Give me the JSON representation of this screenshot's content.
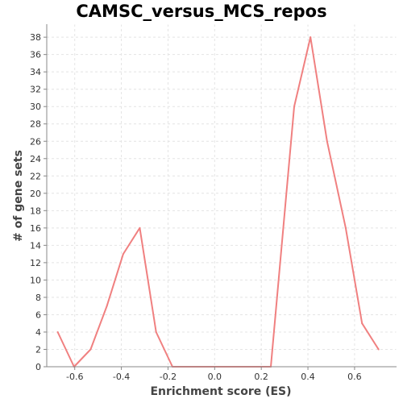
{
  "chart_data": {
    "type": "line",
    "title": "CAMSC_versus_MCS_repos",
    "xlabel": "Enrichment score (ES)",
    "ylabel": "# of gene sets",
    "xlim": [
      -0.72,
      0.78
    ],
    "ylim": [
      0,
      39.5
    ],
    "xticks": [
      "-0.6",
      "-0.4",
      "-0.2",
      "0.0",
      "0.2",
      "0.4",
      "0.6"
    ],
    "xtick_values": [
      -0.6,
      -0.4,
      -0.2,
      0.0,
      0.2,
      0.4,
      0.6
    ],
    "yticks": [
      "0",
      "2",
      "4",
      "6",
      "8",
      "10",
      "12",
      "14",
      "16",
      "18",
      "20",
      "22",
      "24",
      "26",
      "28",
      "30",
      "32",
      "34",
      "36",
      "38"
    ],
    "ytick_values": [
      0,
      2,
      4,
      6,
      8,
      10,
      12,
      14,
      16,
      18,
      20,
      22,
      24,
      26,
      28,
      30,
      32,
      34,
      36,
      38
    ],
    "grid": true,
    "line_color": "#f08080",
    "series": [
      {
        "x": [
          -0.673,
          -0.603,
          -0.532,
          -0.462,
          -0.392,
          -0.321,
          -0.251,
          -0.181,
          -0.11,
          -0.04,
          0.03,
          0.1,
          0.171,
          0.241,
          0.341,
          0.411,
          0.482,
          0.562,
          0.632,
          0.703
        ],
        "values": [
          4,
          0,
          2,
          7,
          13,
          16,
          4,
          0,
          0,
          0,
          0,
          0,
          0,
          0,
          30,
          38,
          26,
          16,
          5,
          2
        ]
      }
    ]
  }
}
